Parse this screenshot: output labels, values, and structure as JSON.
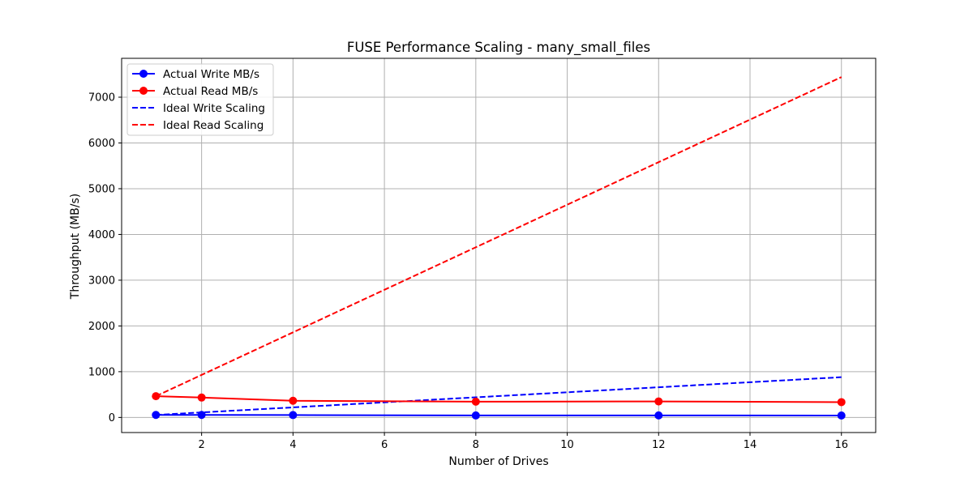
{
  "chart_data": {
    "type": "line",
    "title": "FUSE Performance Scaling - many_small_files",
    "xlabel": "Number of Drives",
    "ylabel": "Throughput (MB/s)",
    "x": [
      1,
      2,
      4,
      8,
      12,
      16
    ],
    "xlim": [
      0.25,
      16.75
    ],
    "ylim": [
      -330,
      7850
    ],
    "xticks": [
      2,
      4,
      6,
      8,
      10,
      12,
      14,
      16
    ],
    "yticks": [
      0,
      1000,
      2000,
      3000,
      4000,
      5000,
      6000,
      7000
    ],
    "grid": true,
    "legend_position": "top-left",
    "series": [
      {
        "name": "Actual Write MB/s",
        "color": "#0000ff",
        "style": "solid",
        "marker": "circle",
        "values": [
          55,
          55,
          52,
          43,
          44,
          42
        ]
      },
      {
        "name": "Actual Read MB/s",
        "color": "#ff0000",
        "style": "solid",
        "marker": "circle",
        "values": [
          465,
          435,
          365,
          345,
          350,
          335
        ]
      },
      {
        "name": "Ideal Write Scaling",
        "color": "#0000ff",
        "style": "dashed",
        "marker": "none",
        "values": [
          55,
          110,
          220,
          440,
          660,
          880
        ]
      },
      {
        "name": "Ideal Read Scaling",
        "color": "#ff0000",
        "style": "dashed",
        "marker": "none",
        "values": [
          465,
          930,
          1860,
          3720,
          5580,
          7440
        ]
      }
    ]
  }
}
